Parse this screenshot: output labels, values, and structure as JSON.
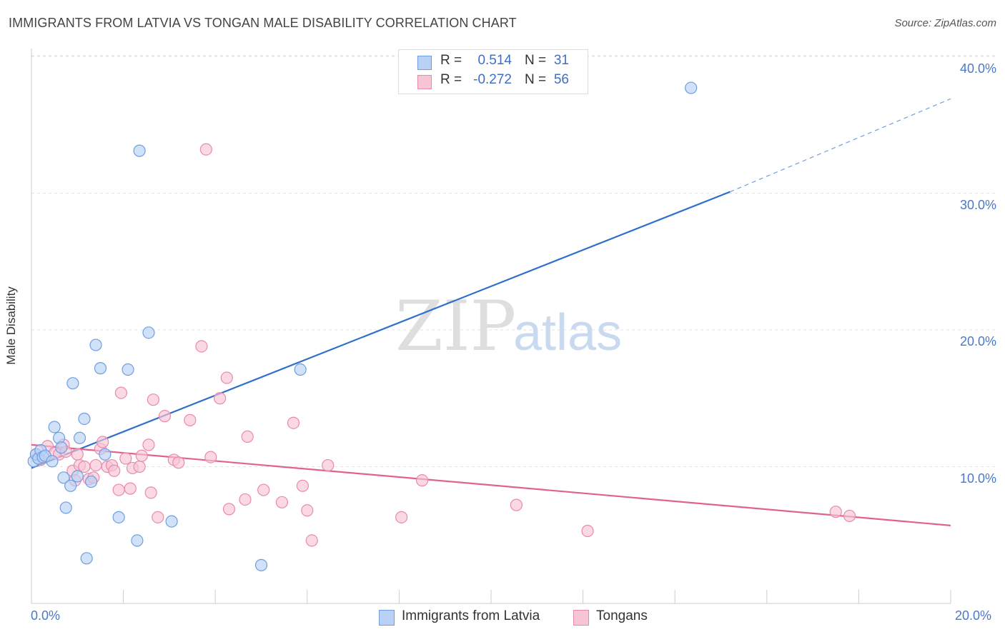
{
  "header": {
    "title": "IMMIGRANTS FROM LATVIA VS TONGAN MALE DISABILITY CORRELATION CHART",
    "source": "Source: ZipAtlas.com"
  },
  "watermark": {
    "zip": "ZIP",
    "atlas": "atlas"
  },
  "legend": {
    "rows": [
      {
        "r_label": "R =",
        "r_value": "0.514",
        "n_label": "N =",
        "n_value": "31"
      },
      {
        "r_label": "R =",
        "r_value": "-0.272",
        "n_label": "N =",
        "n_value": "56"
      }
    ]
  },
  "bottom_legend": {
    "items": [
      {
        "label": "Immigrants from Latvia"
      },
      {
        "label": "Tongans"
      }
    ]
  },
  "axes": {
    "ylabel": "Male Disability",
    "yticks": [
      "40.0%",
      "30.0%",
      "20.0%",
      "10.0%"
    ],
    "xtick_left": "0.0%",
    "xtick_right": "20.0%"
  },
  "colors": {
    "series1_fill": "#b9d1f5",
    "series1_stroke": "#6f9ee0",
    "series1_line": "#2f6fcc",
    "series2_fill": "#f8c5d6",
    "series2_stroke": "#e98aaa",
    "series2_line": "#e0628f",
    "tick_text": "#4a78c8",
    "grid": "#e3e3e3"
  },
  "chart_data": {
    "type": "scatter",
    "title": "IMMIGRANTS FROM LATVIA VS TONGAN MALE DISABILITY CORRELATION CHART",
    "xlabel": "",
    "ylabel": "Male Disability",
    "xlim": [
      0,
      20
    ],
    "ylim": [
      0,
      42
    ],
    "y_gridlines": [
      10,
      20,
      30,
      40
    ],
    "legend_position": "top-center",
    "series": [
      {
        "name": "Immigrants from Latvia",
        "stats": {
          "R": 0.514,
          "N": 31
        },
        "trend": {
          "x0": 0,
          "y0": 9.9,
          "x1": 15.2,
          "y1": 30.1,
          "dashed_to_x": 20,
          "dashed_to_y": 36.9
        },
        "points": [
          [
            0.05,
            10.4
          ],
          [
            0.1,
            10.9
          ],
          [
            0.15,
            10.6
          ],
          [
            0.2,
            11.2
          ],
          [
            0.25,
            10.7
          ],
          [
            0.3,
            10.8
          ],
          [
            0.45,
            10.4
          ],
          [
            0.5,
            12.9
          ],
          [
            0.6,
            12.1
          ],
          [
            0.65,
            11.4
          ],
          [
            0.7,
            9.2
          ],
          [
            0.75,
            7.0
          ],
          [
            0.85,
            8.6
          ],
          [
            0.9,
            16.1
          ],
          [
            1.0,
            9.3
          ],
          [
            1.05,
            12.1
          ],
          [
            1.15,
            13.5
          ],
          [
            1.2,
            3.3
          ],
          [
            1.3,
            8.9
          ],
          [
            1.4,
            18.9
          ],
          [
            1.5,
            17.2
          ],
          [
            1.6,
            10.9
          ],
          [
            1.9,
            6.3
          ],
          [
            2.1,
            17.1
          ],
          [
            2.3,
            4.6
          ],
          [
            2.35,
            33.1
          ],
          [
            2.55,
            19.8
          ],
          [
            3.05,
            6.0
          ],
          [
            5.0,
            2.8
          ],
          [
            5.85,
            17.1
          ],
          [
            14.35,
            37.7
          ]
        ]
      },
      {
        "name": "Tongans",
        "stats": {
          "R": -0.272,
          "N": 56
        },
        "trend": {
          "x0": 0,
          "y0": 11.6,
          "x1": 20,
          "y1": 5.7
        },
        "points": [
          [
            0.1,
            10.9
          ],
          [
            0.2,
            10.5
          ],
          [
            0.35,
            11.5
          ],
          [
            0.5,
            11.0
          ],
          [
            0.6,
            10.9
          ],
          [
            0.7,
            11.6
          ],
          [
            0.75,
            11.1
          ],
          [
            0.9,
            9.7
          ],
          [
            0.95,
            9.0
          ],
          [
            1.0,
            10.9
          ],
          [
            1.05,
            10.1
          ],
          [
            1.15,
            10.0
          ],
          [
            1.25,
            9.1
          ],
          [
            1.35,
            9.2
          ],
          [
            1.4,
            10.1
          ],
          [
            1.5,
            11.3
          ],
          [
            1.55,
            11.8
          ],
          [
            1.65,
            10.0
          ],
          [
            1.75,
            10.1
          ],
          [
            1.8,
            9.7
          ],
          [
            1.9,
            8.3
          ],
          [
            1.95,
            15.4
          ],
          [
            2.05,
            10.6
          ],
          [
            2.15,
            8.4
          ],
          [
            2.2,
            9.9
          ],
          [
            2.35,
            10.0
          ],
          [
            2.4,
            10.8
          ],
          [
            2.55,
            11.6
          ],
          [
            2.6,
            8.1
          ],
          [
            2.65,
            14.9
          ],
          [
            2.75,
            6.3
          ],
          [
            2.9,
            13.7
          ],
          [
            3.1,
            10.5
          ],
          [
            3.2,
            10.3
          ],
          [
            3.45,
            13.4
          ],
          [
            3.7,
            18.8
          ],
          [
            3.8,
            33.2
          ],
          [
            3.9,
            10.7
          ],
          [
            4.1,
            15.0
          ],
          [
            4.25,
            16.5
          ],
          [
            4.3,
            6.9
          ],
          [
            4.65,
            7.6
          ],
          [
            4.7,
            12.2
          ],
          [
            5.05,
            8.3
          ],
          [
            5.45,
            7.4
          ],
          [
            5.7,
            13.2
          ],
          [
            5.9,
            8.6
          ],
          [
            6.0,
            6.8
          ],
          [
            6.1,
            4.6
          ],
          [
            6.45,
            10.1
          ],
          [
            8.05,
            6.3
          ],
          [
            8.5,
            9.0
          ],
          [
            10.55,
            7.2
          ],
          [
            12.1,
            5.3
          ],
          [
            17.5,
            6.7
          ],
          [
            17.8,
            6.4
          ]
        ]
      }
    ]
  }
}
